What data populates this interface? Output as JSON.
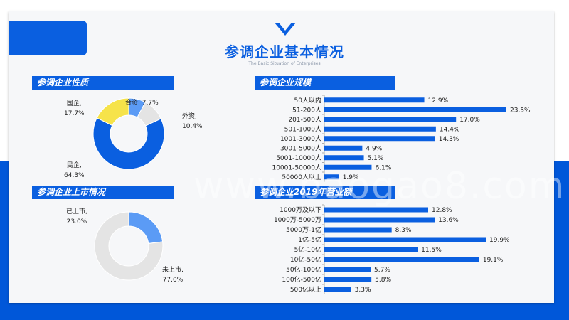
{
  "header": {
    "title": "参调企业基本情况",
    "subtitle": "The Basic Situation of Enterprises"
  },
  "colors": {
    "brand": "#0a5fe0",
    "light_blue": "#5b9bf5",
    "yellow": "#f6e34a",
    "grey": "#e4e4e4"
  },
  "watermark": "www.baogao8.com",
  "sections": {
    "nature": "参调企业性质",
    "listed": "参调企业上市情况",
    "scale": "参调企业规模",
    "revenue": "参调企业2019年营业额"
  },
  "chart_data": [
    {
      "type": "pie",
      "title": "参调企业性质",
      "labels": [
        "合资",
        "外资",
        "民企",
        "国企"
      ],
      "values": [
        7.7,
        10.4,
        64.3,
        17.7
      ],
      "display_labels": [
        {
          "name": "合资,",
          "pct": "7.7%"
        },
        {
          "name": "外资,",
          "pct": "10.4%"
        },
        {
          "name": "民企,",
          "pct": "64.3%"
        },
        {
          "name": "国企,",
          "pct": "17.7%"
        }
      ],
      "colors": [
        "#5b9bf5",
        "#e4e4e4",
        "#0a5fe0",
        "#f6e34a"
      ]
    },
    {
      "type": "pie",
      "title": "参调企业上市情况",
      "labels": [
        "已上市",
        "未上市"
      ],
      "values": [
        23.0,
        77.0
      ],
      "display_labels": [
        {
          "name": "已上市,",
          "pct": "23.0%"
        },
        {
          "name": "未上市,",
          "pct": "77.0%"
        }
      ],
      "colors": [
        "#5b9bf5",
        "#e4e4e4"
      ]
    },
    {
      "type": "bar",
      "title": "参调企业规模",
      "categories": [
        "50人以内",
        "51-200人",
        "201-500人",
        "501-1000人",
        "1001-3000人",
        "3001-5000人",
        "5001-10000人",
        "10001-50000人",
        "50000人以上"
      ],
      "values": [
        12.9,
        23.5,
        17.0,
        14.4,
        14.3,
        4.9,
        5.1,
        6.1,
        1.9
      ],
      "value_labels": [
        "12.9%",
        "23.5%",
        "17.0%",
        "14.4%",
        "14.3%",
        "4.9%",
        "5.1%",
        "6.1%",
        "1.9%"
      ],
      "orientation": "horizontal"
    },
    {
      "type": "bar",
      "title": "参调企业2019年营业额",
      "categories": [
        "1000万及以下",
        "1000万-5000万",
        "5000万-1亿",
        "1亿-5亿",
        "5亿-10亿",
        "10亿-50亿",
        "50亿-100亿",
        "100亿-500亿",
        "500亿以上"
      ],
      "values": [
        12.8,
        13.6,
        8.3,
        19.9,
        11.5,
        19.1,
        5.7,
        5.8,
        3.3
      ],
      "value_labels": [
        "12.8%",
        "13.6%",
        "8.3%",
        "19.9%",
        "11.5%",
        "19.1%",
        "5.7%",
        "5.8%",
        "3.3%"
      ],
      "orientation": "horizontal"
    }
  ]
}
